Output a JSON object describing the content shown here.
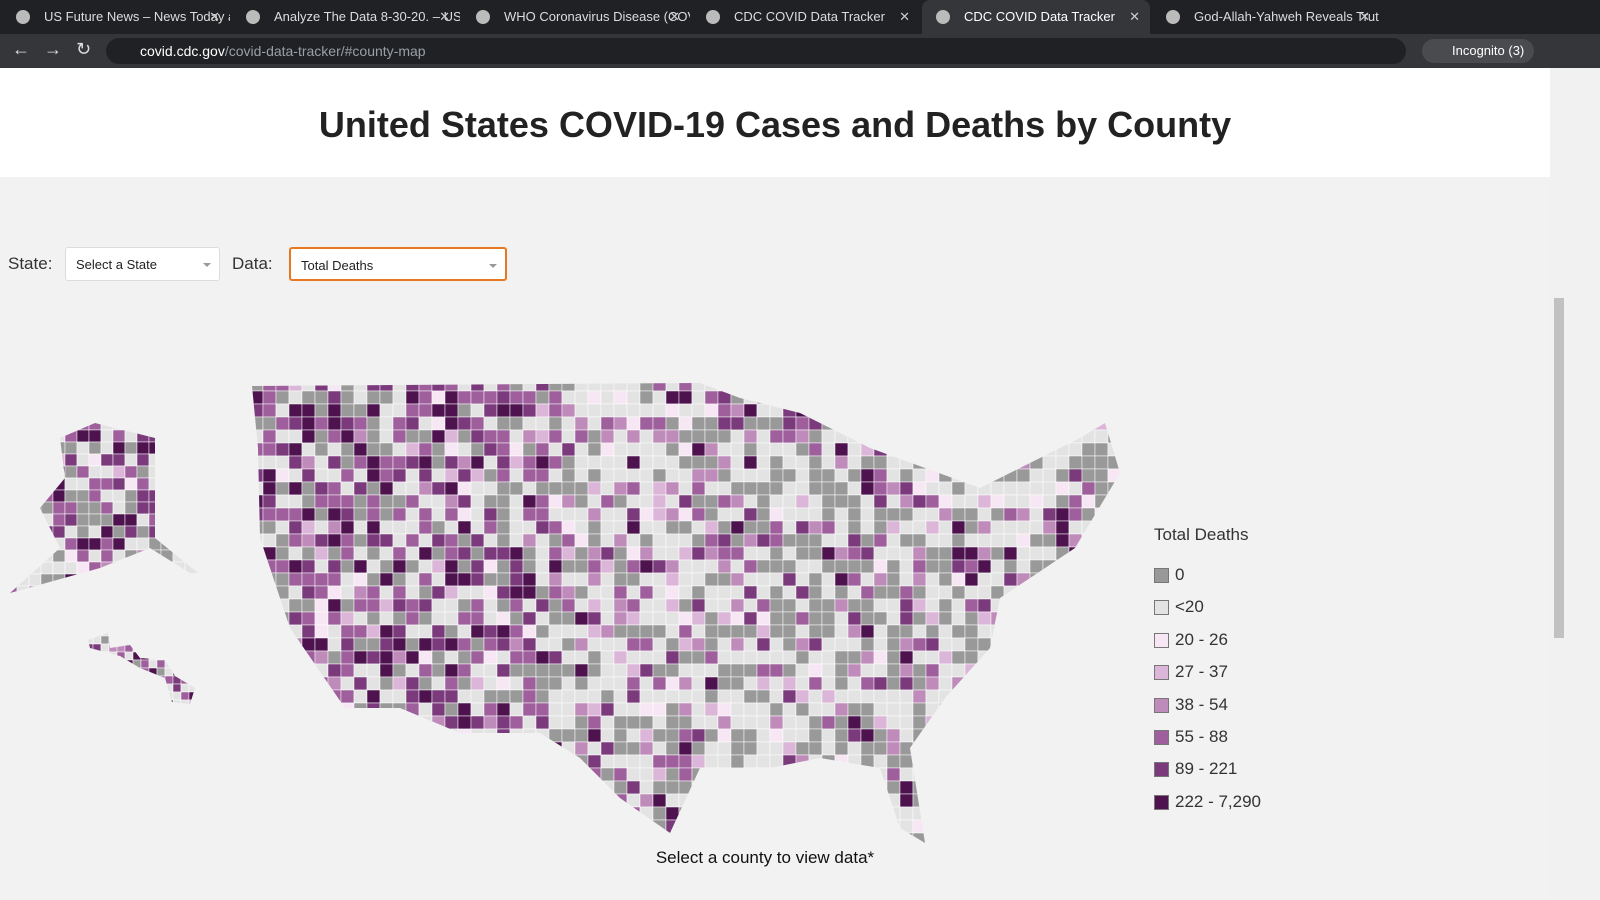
{
  "browser": {
    "tabs": [
      "US Future News – News Today a",
      "Analyze The Data 8-30-20. – US",
      "WHO Coronavirus Disease (COV",
      "CDC COVID Data Tracker",
      "CDC COVID Data Tracker",
      "God-Allah-Yahweh Reveals Trut"
    ],
    "active_tab": 4,
    "url_host": "covid.cdc.gov",
    "url_path": "/covid-data-tracker/#county-map",
    "profile": "Incognito (3)"
  },
  "page": {
    "title": "United States COVID-19 Cases and Deaths by County",
    "state_label": "State:",
    "state_select": "Select a State",
    "data_label": "Data:",
    "data_select": "Total Deaths",
    "legend": {
      "title": "Total Deaths",
      "items": [
        {
          "label": "0",
          "color": "#999999"
        },
        {
          "label": "<20",
          "color": "#e3e3e3"
        },
        {
          "label": "20 - 26",
          "color": "#f7e6f4"
        },
        {
          "label": "27 - 37",
          "color": "#dcb6d8"
        },
        {
          "label": "38 - 54",
          "color": "#bf8bbb"
        },
        {
          "label": "55 - 88",
          "color": "#9e5f9c"
        },
        {
          "label": "89 - 221",
          "color": "#7a3a7c"
        },
        {
          "label": "222 - 7,290",
          "color": "#4e124f"
        }
      ]
    },
    "footer": "Select a county to view data*"
  }
}
